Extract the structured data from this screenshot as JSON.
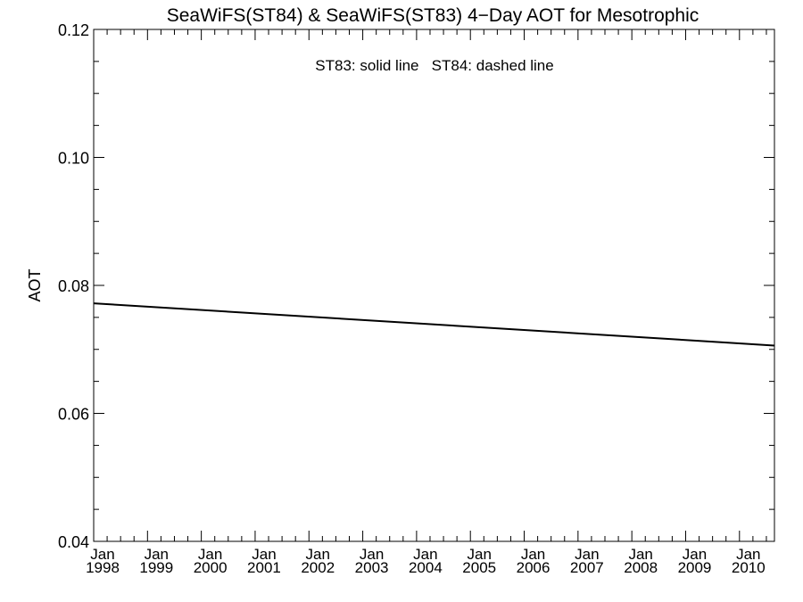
{
  "chart_data": {
    "type": "line",
    "title": "SeaWiFS(ST84) & SeaWiFS(ST83) 4−Day AOT for Mesotrophic",
    "annotation": "ST83: solid line   ST84: dashed line",
    "xlabel": "",
    "ylabel": "AOT",
    "xlim": [
      1998.0,
      2010.65
    ],
    "ylim": [
      0.04,
      0.12
    ],
    "y_ticks": [
      "0.04",
      "0.06",
      "0.08",
      "0.10",
      "0.12"
    ],
    "x_ticks": [
      {
        "month": "Jan",
        "year": "1998",
        "value": 1998
      },
      {
        "month": "Jan",
        "year": "1999",
        "value": 1999
      },
      {
        "month": "Jan",
        "year": "2000",
        "value": 2000
      },
      {
        "month": "Jan",
        "year": "2001",
        "value": 2001
      },
      {
        "month": "Jan",
        "year": "2002",
        "value": 2002
      },
      {
        "month": "Jan",
        "year": "2003",
        "value": 2003
      },
      {
        "month": "Jan",
        "year": "2004",
        "value": 2004
      },
      {
        "month": "Jan",
        "year": "2005",
        "value": 2005
      },
      {
        "month": "Jan",
        "year": "2006",
        "value": 2006
      },
      {
        "month": "Jan",
        "year": "2007",
        "value": 2007
      },
      {
        "month": "Jan",
        "year": "2008",
        "value": 2008
      },
      {
        "month": "Jan",
        "year": "2009",
        "value": 2009
      },
      {
        "month": "Jan",
        "year": "2010",
        "value": 2010
      }
    ],
    "grid": false,
    "series": [
      {
        "line_style": "solid",
        "color": "#000000",
        "x": [
          1998.0,
          2010.65
        ],
        "y": [
          0.0772,
          0.0706
        ]
      }
    ]
  }
}
